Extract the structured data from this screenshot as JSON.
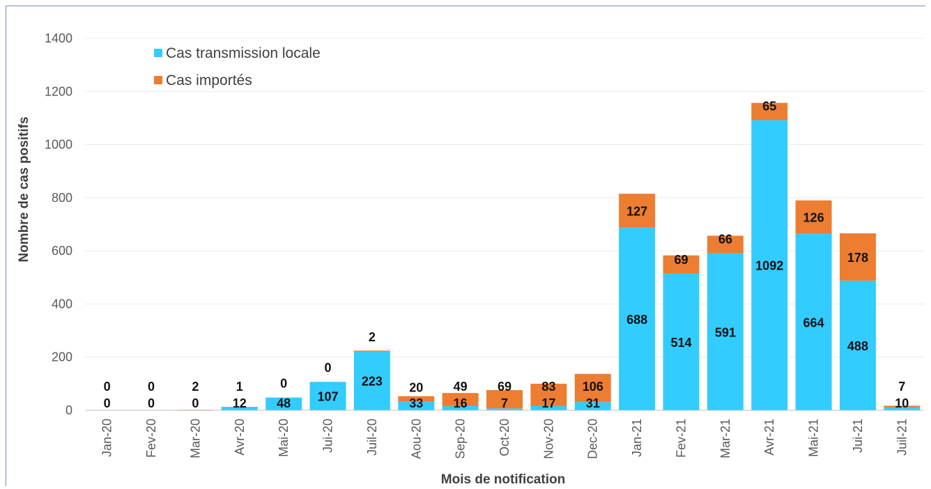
{
  "chart_data": {
    "type": "bar",
    "stacked": true,
    "categories": [
      "Jan-20",
      "Fev-20",
      "Mar-20",
      "Avr-20",
      "Mai-20",
      "Jui-20",
      "Juil-20",
      "Aou-20",
      "Sep-20",
      "Oct-20",
      "Nov-20",
      "Dec-20",
      "Jan-21",
      "Fev-21",
      "Mar-21",
      "Avr-21",
      "Mai-21",
      "Jui-21",
      "Juil-21"
    ],
    "series": [
      {
        "name": "Cas transmission locale",
        "color": "#33ccff",
        "values": [
          0,
          0,
          0,
          12,
          48,
          107,
          223,
          33,
          16,
          7,
          17,
          31,
          688,
          514,
          591,
          1092,
          664,
          488,
          10
        ]
      },
      {
        "name": "Cas importés",
        "color": "#ed7d31",
        "values": [
          0,
          0,
          2,
          1,
          0,
          0,
          2,
          20,
          49,
          69,
          83,
          106,
          127,
          69,
          66,
          65,
          126,
          178,
          7
        ]
      }
    ],
    "xlabel": "Mois de notification",
    "ylabel": "Nombre de cas positifs",
    "ylim": [
      0,
      1400
    ],
    "yticks": [
      0,
      200,
      400,
      600,
      800,
      1000,
      1200,
      1400
    ],
    "grid": true,
    "legend_position": "top-left"
  }
}
